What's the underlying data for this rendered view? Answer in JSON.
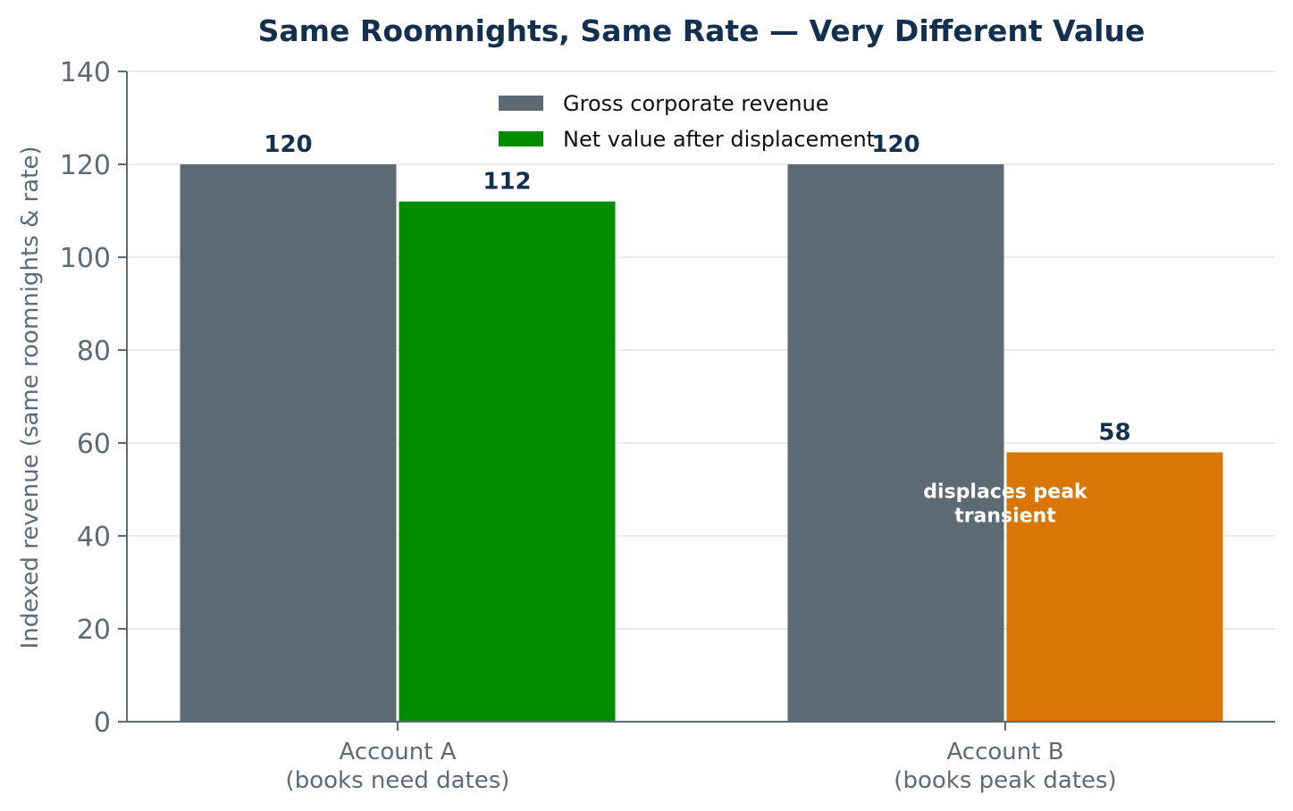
{
  "chart_data": {
    "type": "bar",
    "title": "Same Roomnights, Same Rate — Very Different Value",
    "ylabel": "Indexed revenue (same roomnights & rate)",
    "xlabel": "",
    "ylim": [
      0,
      140
    ],
    "yticks": [
      0,
      20,
      40,
      60,
      80,
      100,
      120,
      140
    ],
    "grid": true,
    "legend_position": "top-center",
    "categories": [
      [
        "Account A",
        "(books need dates)"
      ],
      [
        "Account B",
        "(books peak dates)"
      ]
    ],
    "series": [
      {
        "name": "Gross corporate revenue",
        "values": [
          120,
          120
        ],
        "colors": [
          "#5e6a73",
          "#5e6a73"
        ],
        "legend_color": "#5e6a73"
      },
      {
        "name": "Net value after displacement",
        "values": [
          112,
          58
        ],
        "colors": [
          "#008b00",
          "#d97706"
        ],
        "legend_color": "#008b00"
      }
    ],
    "annotations": [
      {
        "lines": [
          "displaces peak",
          "transient"
        ],
        "category": 1,
        "y": 47
      }
    ]
  }
}
